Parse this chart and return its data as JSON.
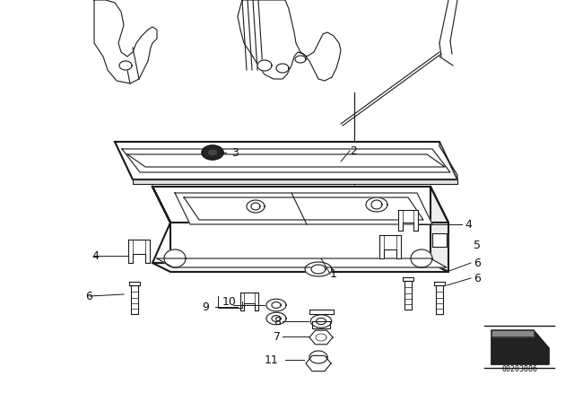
{
  "bg_color": "#ffffff",
  "part_number": "00203886",
  "line_color": "#1a1a1a",
  "lw_main": 1.5,
  "lw_thin": 0.8,
  "lw_extra": 0.5
}
